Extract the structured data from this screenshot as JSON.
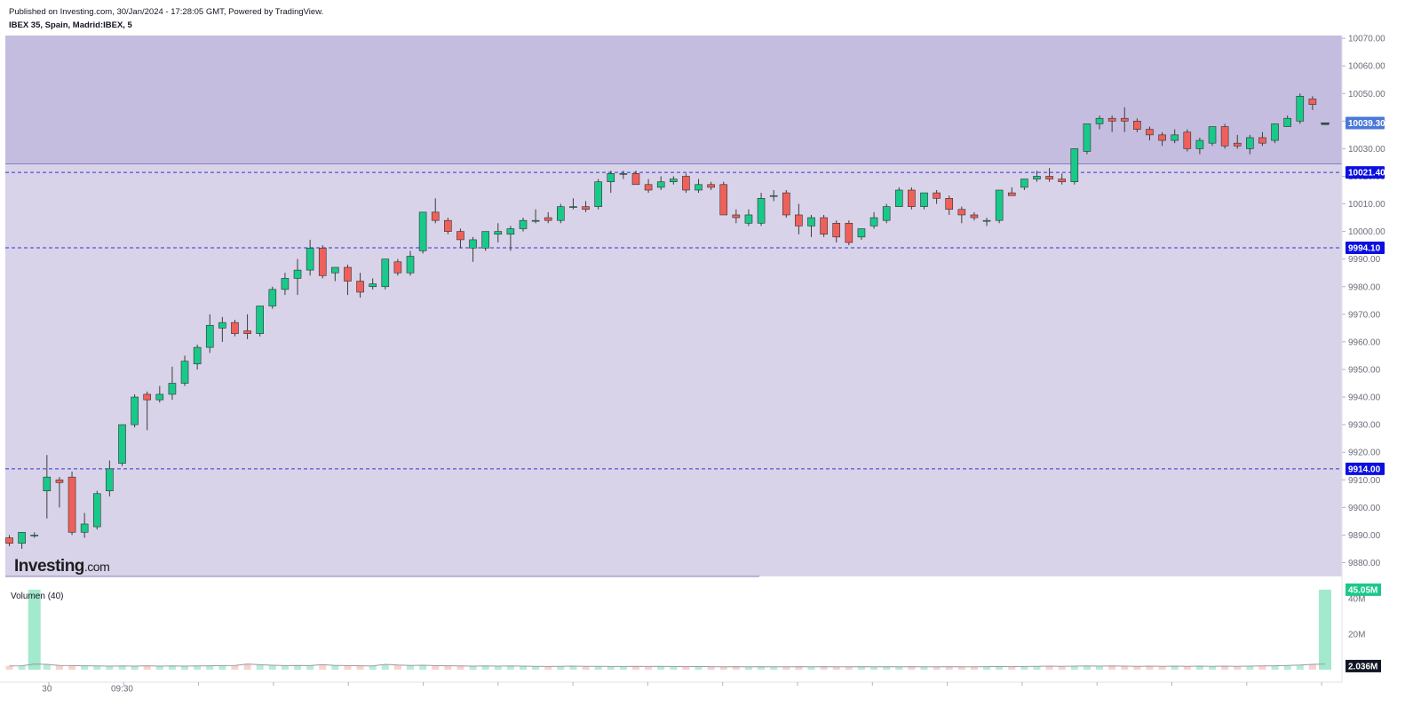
{
  "header": {
    "published": "Published on Investing.com, 30/Jan/2024 - 17:28:05 GMT, Powered by TradingView.",
    "symbol": "IBEX 35, Spain, Madrid:IBEX, 5"
  },
  "logo": {
    "text": "Investing",
    "suffix": ".com"
  },
  "colors": {
    "up": "#19c98a",
    "down": "#f0605a",
    "wick": "#3d3d3d",
    "zone_upper": "#c5bddf",
    "zone_lower": "#d8d3e9",
    "level_line": "#3a33d6",
    "tag_blue": "#0b0fe0",
    "tag_last": "#4a78d8",
    "vol_tag": "#19c98a",
    "vol_up": "#a3e9cd",
    "vol_down": "#f7c5c2"
  },
  "chart_data": {
    "type": "candlestick",
    "title": "IBEX 35, Spain, Madrid:IBEX, 5",
    "ylim": [
      9875,
      10071
    ],
    "yticks": [
      9880,
      9890,
      9900,
      9910,
      9920,
      9930,
      9940,
      9950,
      9960,
      9970,
      9980,
      9990,
      10000,
      10010,
      10020,
      10030,
      10040,
      10050,
      10060,
      10070
    ],
    "ytick_labels": [
      "9880.00",
      "9890.00",
      "9900.00",
      "9910.00",
      "9920.00",
      "9930.00",
      "9940.00",
      "9950.00",
      "9960.00",
      "9970.00",
      "9980.00",
      "9990.00",
      "10000.00",
      "10010.00",
      "10020.00",
      "10030.00",
      "10040.00",
      "10050.00",
      "10060.00",
      "10070.00"
    ],
    "xtick_labels": [
      {
        "label": "30",
        "index": 3
      },
      {
        "label": "09:30",
        "index": 9
      }
    ],
    "zone": {
      "upper_from": 10024.5
    },
    "levels": [
      {
        "value": 10021.4,
        "label": "10021.40"
      },
      {
        "value": 9994.1,
        "label": "9994.10"
      },
      {
        "value": 9914.0,
        "label": "9914.00"
      }
    ],
    "last_price": {
      "value": 10039.3,
      "label": "10039.30"
    },
    "candles": [
      [
        9889,
        9890,
        9886,
        9887
      ],
      [
        9887,
        9891,
        9885,
        9891
      ],
      [
        9890,
        9891,
        9889,
        9890
      ],
      [
        9906,
        9919,
        9896,
        9911
      ],
      [
        9910,
        9911,
        9900,
        9909
      ],
      [
        9911,
        9913,
        9890,
        9891
      ],
      [
        9891,
        9898,
        9889,
        9894
      ],
      [
        9893,
        9906,
        9892,
        9905
      ],
      [
        9906,
        9917,
        9904,
        9914
      ],
      [
        9916,
        9930,
        9915,
        9930
      ],
      [
        9930,
        9941,
        9929,
        9940
      ],
      [
        9941,
        9942,
        9928,
        9939
      ],
      [
        9939,
        9944,
        9938,
        9941
      ],
      [
        9941,
        9951,
        9939,
        9945
      ],
      [
        9945,
        9955,
        9944,
        9953
      ],
      [
        9952,
        9959,
        9950,
        9958
      ],
      [
        9958,
        9970,
        9956,
        9966
      ],
      [
        9965,
        9969,
        9960,
        9967
      ],
      [
        9967,
        9968,
        9962,
        9963
      ],
      [
        9964,
        9970,
        9961,
        9963
      ],
      [
        9963,
        9973,
        9962,
        9973
      ],
      [
        9973,
        9980,
        9972,
        9979
      ],
      [
        9979,
        9985,
        9977,
        9983
      ],
      [
        9983,
        9990,
        9977,
        9986
      ],
      [
        9986,
        9997,
        9984,
        9994
      ],
      [
        9994,
        9995,
        9983,
        9984
      ],
      [
        9985,
        9987,
        9982,
        9987
      ],
      [
        9987,
        9988,
        9977,
        9982
      ],
      [
        9982,
        9985,
        9976,
        9978
      ],
      [
        9980,
        9983,
        9979,
        9981
      ],
      [
        9980,
        9990,
        9979,
        9990
      ],
      [
        9989,
        9990,
        9984,
        9985
      ],
      [
        9985,
        9993,
        9984,
        9991
      ],
      [
        9993,
        10007,
        9992,
        10007
      ],
      [
        10007,
        10012,
        10003,
        10004
      ],
      [
        10004,
        10005,
        9999,
        10000
      ],
      [
        10000,
        10001,
        9994,
        9997
      ],
      [
        9994,
        9998,
        9989,
        9997
      ],
      [
        9994,
        10000,
        9993,
        10000
      ],
      [
        9999,
        10003,
        9996,
        10000
      ],
      [
        9999,
        10002,
        9993,
        10001
      ],
      [
        10001,
        10005,
        10000,
        10004
      ],
      [
        10004,
        10008,
        10003,
        10004
      ],
      [
        10005,
        10007,
        10003,
        10004
      ],
      [
        10004,
        10010,
        10003,
        10009
      ],
      [
        10009,
        10012,
        10008,
        10009
      ],
      [
        10009,
        10011,
        10007,
        10008
      ],
      [
        10009,
        10019,
        10008,
        10018
      ],
      [
        10018,
        10022,
        10014,
        10021
      ],
      [
        10021,
        10022,
        10019,
        10021
      ],
      [
        10021,
        10022,
        10017,
        10017
      ],
      [
        10017,
        10019,
        10014,
        10015
      ],
      [
        10016,
        10020,
        10015,
        10018
      ],
      [
        10018,
        10020,
        10017,
        10019
      ],
      [
        10020,
        10021,
        10014,
        10015
      ],
      [
        10015,
        10019,
        10014,
        10017
      ],
      [
        10017,
        10018,
        10015,
        10016
      ],
      [
        10017,
        10018,
        10006,
        10006
      ],
      [
        10006,
        10008,
        10003,
        10005
      ],
      [
        10003,
        10008,
        10002,
        10006
      ],
      [
        10003,
        10014,
        10002,
        10012
      ],
      [
        10013,
        10015,
        10011,
        10013
      ],
      [
        10014,
        10015,
        10005,
        10006
      ],
      [
        10006,
        10010,
        9999,
        10002
      ],
      [
        10002,
        10006,
        9998,
        10005
      ],
      [
        10005,
        10006,
        9998,
        9999
      ],
      [
        10003,
        10004,
        9996,
        9998
      ],
      [
        10003,
        10004,
        9995,
        9996
      ],
      [
        9998,
        10001,
        9997,
        10001
      ],
      [
        10002,
        10007,
        10001,
        10005
      ],
      [
        10004,
        10010,
        10003,
        10009
      ],
      [
        10009,
        10016,
        10009,
        10015
      ],
      [
        10015,
        10016,
        10008,
        10009
      ],
      [
        10009,
        10014,
        10008,
        10014
      ],
      [
        10014,
        10015,
        10010,
        10012
      ],
      [
        10012,
        10013,
        10006,
        10008
      ],
      [
        10008,
        10009,
        10003,
        10006
      ],
      [
        10006,
        10007,
        10004,
        10005
      ],
      [
        10004,
        10005,
        10002,
        10004
      ],
      [
        10004,
        10015,
        10003,
        10015
      ],
      [
        10014,
        10016,
        10013,
        10013
      ],
      [
        10016,
        10019,
        10015,
        10019
      ],
      [
        10019,
        10022,
        10018,
        10020
      ],
      [
        10020,
        10023,
        10018,
        10019
      ],
      [
        10019,
        10021,
        10017,
        10018
      ],
      [
        10018,
        10030,
        10017,
        10030
      ],
      [
        10029,
        10039,
        10028,
        10039
      ],
      [
        10039,
        10042,
        10037,
        10041
      ],
      [
        10041,
        10042,
        10036,
        10040
      ],
      [
        10041,
        10045,
        10036,
        10040
      ],
      [
        10040,
        10041,
        10036,
        10037
      ],
      [
        10037,
        10038,
        10033,
        10035
      ],
      [
        10035,
        10036,
        10031,
        10033
      ],
      [
        10033,
        10037,
        10032,
        10035
      ],
      [
        10036,
        10037,
        10029,
        10030
      ],
      [
        10030,
        10034,
        10028,
        10033
      ],
      [
        10032,
        10038,
        10031,
        10038
      ],
      [
        10038,
        10039,
        10030,
        10031
      ],
      [
        10032,
        10035,
        10030,
        10031
      ],
      [
        10030,
        10035,
        10028,
        10034
      ],
      [
        10034,
        10036,
        10031,
        10032
      ],
      [
        10033,
        10039,
        10032,
        10039
      ],
      [
        10038,
        10042,
        10038,
        10041
      ],
      [
        10040,
        10050,
        10039,
        10049
      ],
      [
        10048,
        10049,
        10044,
        10046
      ],
      [
        10039,
        10039,
        10039,
        10039
      ]
    ],
    "volume": {
      "title": "Volumen (40)",
      "ylim": [
        0,
        46
      ],
      "yticks": [
        20,
        40
      ],
      "ytick_labels": [
        "20M",
        "40M"
      ],
      "values": [
        2.1,
        2.2,
        45.05,
        3.0,
        2.4,
        2.3,
        2.2,
        2.1,
        2.0,
        2.1,
        2.0,
        2.2,
        2.0,
        2.1,
        2.0,
        2.1,
        2.2,
        2.3,
        2.4,
        3.2,
        2.8,
        2.5,
        2.3,
        2.4,
        2.3,
        2.9,
        2.4,
        2.3,
        2.2,
        2.1,
        3.0,
        2.6,
        2.4,
        2.5,
        2.3,
        2.2,
        2.1,
        2.0,
        2.1,
        2.0,
        2.1,
        2.0,
        1.9,
        1.8,
        1.9,
        2.0,
        1.9,
        1.9,
        1.8,
        1.8,
        1.9,
        1.8,
        1.9,
        1.8,
        1.7,
        1.8,
        1.7,
        1.6,
        1.7,
        1.6,
        1.7,
        1.6,
        1.6,
        1.7,
        1.6,
        1.7,
        1.6,
        1.6,
        1.7,
        1.6,
        1.7,
        1.6,
        1.7,
        1.6,
        1.6,
        1.7,
        1.6,
        1.6,
        1.7,
        1.8,
        1.7,
        1.8,
        1.9,
        2.0,
        1.9,
        2.0,
        2.1,
        2.0,
        2.1,
        2.0,
        1.9,
        2.0,
        1.9,
        2.0,
        1.9,
        2.0,
        1.9,
        2.0,
        1.9,
        2.0,
        2.1,
        2.2,
        2.4,
        2.6,
        3.0,
        45.05
      ],
      "last_tag": "45.05M",
      "avg_tag": "2.036M",
      "avg_value": 2.036
    }
  }
}
